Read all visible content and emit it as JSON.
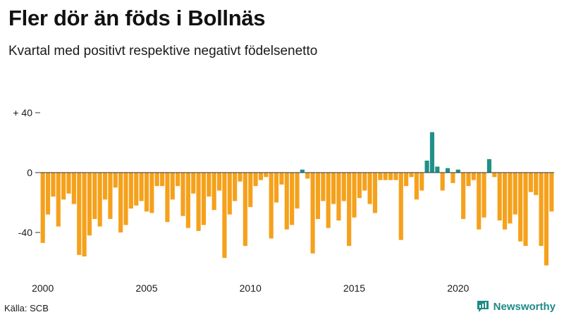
{
  "title": "Fler dör än föds i Bollnäs",
  "subtitle": "Kvartal med positivt respektive negativt födelsenetto",
  "source": "Källa: SCB",
  "brand": "Newsworthy",
  "colors": {
    "negative": "#f5a11c",
    "positive": "#1f9188",
    "axis": "#333333",
    "grid": "#dddddd",
    "brand": "#1e8a86"
  },
  "chart_data": {
    "type": "bar",
    "title": "Fler dör än föds i Bollnäs",
    "subtitle": "Kvartal med positivt respektive negativt födelsenetto",
    "xlabel": "",
    "ylabel": "",
    "ylim": [
      -65,
      45
    ],
    "yticks": [
      40,
      0,
      -40
    ],
    "ytick_labels": [
      "+ 40",
      "0",
      "-40"
    ],
    "xticks": [
      2000,
      2005,
      2010,
      2015,
      2020
    ],
    "xtick_labels": [
      "2000",
      "2005",
      "2010",
      "2015",
      "2020"
    ],
    "start_year": 2000,
    "values": [
      -47,
      -28,
      -16,
      -36,
      -18,
      -14,
      -21,
      -55,
      -56,
      -42,
      -31,
      -36,
      -18,
      -31,
      -10,
      -40,
      -35,
      -24,
      -22,
      -19,
      -26,
      -27,
      -9,
      -9,
      -33,
      -18,
      -9,
      -29,
      -37,
      -14,
      -39,
      -35,
      -16,
      -25,
      -12,
      -57,
      -28,
      -19,
      -6,
      -49,
      -23,
      -9,
      -5,
      -3,
      -44,
      -20,
      -8,
      -38,
      -35,
      -24,
      2,
      -4,
      -54,
      -31,
      -19,
      -37,
      -21,
      -32,
      -19,
      -49,
      -30,
      -17,
      -12,
      -21,
      -27,
      -5,
      -5,
      -5,
      -5,
      -45,
      -9,
      -3,
      -18,
      -12,
      8,
      27,
      4,
      -12,
      3,
      -7,
      2,
      -31,
      -9,
      -5,
      -38,
      -30,
      9,
      -3,
      -32,
      -38,
      -34,
      -28,
      -46,
      -49,
      -13,
      -15,
      -49,
      -62,
      -26
    ]
  }
}
